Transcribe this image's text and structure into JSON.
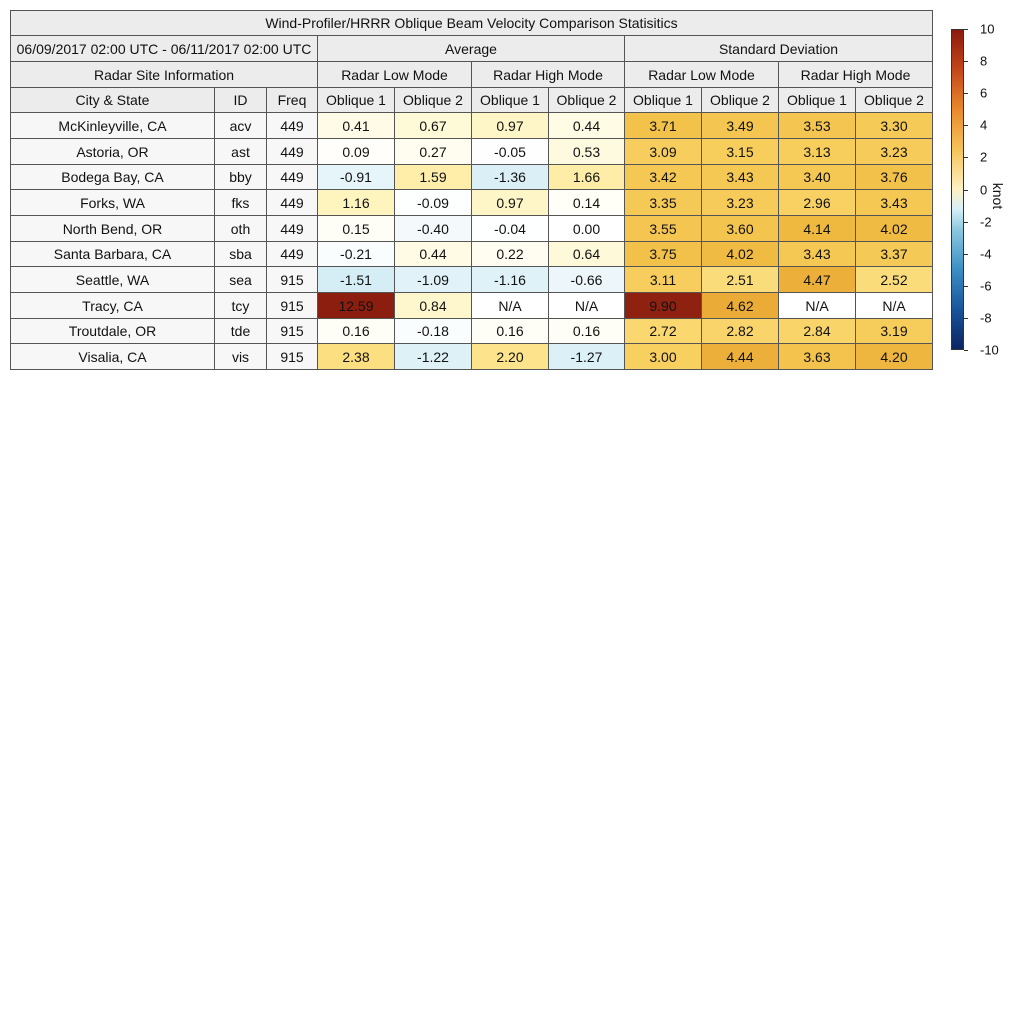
{
  "chart_data": {
    "type": "table",
    "title": "Wind-Profiler/HRRR Oblique Beam Velocity Comparison Statisitics",
    "period": "06/09/2017 02:00 UTC - 06/11/2017 02:00 UTC",
    "groups": {
      "average": "Average",
      "std": "Standard Deviation"
    },
    "site_info_label": "Radar Site Information",
    "modes": [
      "Radar Low Mode",
      "Radar High Mode",
      "Radar Low Mode",
      "Radar High Mode"
    ],
    "site_columns": [
      "City & State",
      "ID",
      "Freq"
    ],
    "beam_columns": [
      "Oblique 1",
      "Oblique 2",
      "Oblique 1",
      "Oblique 2",
      "Oblique 1",
      "Oblique 2",
      "Oblique 1",
      "Oblique 2"
    ],
    "rows": [
      {
        "city": "McKinleyville, CA",
        "id": "acv",
        "freq": "449",
        "values": [
          "0.41",
          "0.67",
          "0.97",
          "0.44",
          "3.71",
          "3.49",
          "3.53",
          "3.30"
        ]
      },
      {
        "city": "Astoria, OR",
        "id": "ast",
        "freq": "449",
        "values": [
          "0.09",
          "0.27",
          "-0.05",
          "0.53",
          "3.09",
          "3.15",
          "3.13",
          "3.23"
        ]
      },
      {
        "city": "Bodega Bay, CA",
        "id": "bby",
        "freq": "449",
        "values": [
          "-0.91",
          "1.59",
          "-1.36",
          "1.66",
          "3.42",
          "3.43",
          "3.40",
          "3.76"
        ]
      },
      {
        "city": "Forks, WA",
        "id": "fks",
        "freq": "449",
        "values": [
          "1.16",
          "-0.09",
          "0.97",
          "0.14",
          "3.35",
          "3.23",
          "2.96",
          "3.43"
        ]
      },
      {
        "city": "North Bend, OR",
        "id": "oth",
        "freq": "449",
        "values": [
          "0.15",
          "-0.40",
          "-0.04",
          "0.00",
          "3.55",
          "3.60",
          "4.14",
          "4.02"
        ]
      },
      {
        "city": "Santa Barbara, CA",
        "id": "sba",
        "freq": "449",
        "values": [
          "-0.21",
          "0.44",
          "0.22",
          "0.64",
          "3.75",
          "4.02",
          "3.43",
          "3.37"
        ]
      },
      {
        "city": "Seattle, WA",
        "id": "sea",
        "freq": "915",
        "values": [
          "-1.51",
          "-1.09",
          "-1.16",
          "-0.66",
          "3.11",
          "2.51",
          "4.47",
          "2.52"
        ]
      },
      {
        "city": "Tracy, CA",
        "id": "tcy",
        "freq": "915",
        "values": [
          "12.59",
          "0.84",
          "N/A",
          "N/A",
          "9.90",
          "4.62",
          "N/A",
          "N/A"
        ]
      },
      {
        "city": "Troutdale, OR",
        "id": "tde",
        "freq": "915",
        "values": [
          "0.16",
          "-0.18",
          "0.16",
          "0.16",
          "2.72",
          "2.82",
          "2.84",
          "3.19"
        ]
      },
      {
        "city": "Visalia, CA",
        "id": "vis",
        "freq": "915",
        "values": [
          "2.38",
          "-1.22",
          "2.20",
          "-1.27",
          "3.00",
          "4.44",
          "3.63",
          "4.20"
        ]
      }
    ],
    "colorbar": {
      "label": "knot",
      "range": [
        -10,
        10
      ],
      "ticks": [
        "10",
        "8",
        "6",
        "4",
        "2",
        "0",
        "-2",
        "-4",
        "-6",
        "-8",
        "-10"
      ]
    }
  }
}
